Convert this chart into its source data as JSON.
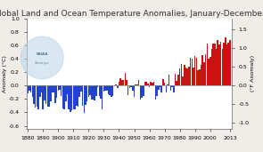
{
  "title": "Global Land and Ocean Temperature Anomalies, January-December",
  "ylabel_left": "Anomaly (°C)",
  "ylabel_right": "(°F Anomaly)",
  "years": [
    1880,
    1881,
    1882,
    1883,
    1884,
    1885,
    1886,
    1887,
    1888,
    1889,
    1890,
    1891,
    1892,
    1893,
    1894,
    1895,
    1896,
    1897,
    1898,
    1899,
    1900,
    1901,
    1902,
    1903,
    1904,
    1905,
    1906,
    1907,
    1908,
    1909,
    1910,
    1911,
    1912,
    1913,
    1914,
    1915,
    1916,
    1917,
    1918,
    1919,
    1920,
    1921,
    1922,
    1923,
    1924,
    1925,
    1926,
    1927,
    1928,
    1929,
    1930,
    1931,
    1932,
    1933,
    1934,
    1935,
    1936,
    1937,
    1938,
    1939,
    1940,
    1941,
    1942,
    1943,
    1944,
    1945,
    1946,
    1947,
    1948,
    1949,
    1950,
    1951,
    1952,
    1953,
    1954,
    1955,
    1956,
    1957,
    1958,
    1959,
    1960,
    1961,
    1962,
    1963,
    1964,
    1965,
    1966,
    1967,
    1968,
    1969,
    1970,
    1971,
    1972,
    1973,
    1974,
    1975,
    1976,
    1977,
    1978,
    1979,
    1980,
    1981,
    1982,
    1983,
    1984,
    1985,
    1986,
    1987,
    1988,
    1989,
    1990,
    1991,
    1992,
    1993,
    1994,
    1995,
    1996,
    1997,
    1998,
    1999,
    2000,
    2001,
    2002,
    2003,
    2004,
    2005,
    2006,
    2007,
    2008,
    2009,
    2010,
    2011,
    2012,
    2013
  ],
  "anomalies": [
    -0.12,
    -0.08,
    -0.11,
    -0.17,
    -0.28,
    -0.33,
    -0.31,
    -0.35,
    -0.17,
    -0.1,
    -0.35,
    -0.22,
    -0.27,
    -0.31,
    -0.32,
    -0.23,
    -0.11,
    -0.11,
    -0.26,
    -0.18,
    -0.08,
    -0.07,
    -0.15,
    -0.34,
    -0.36,
    -0.23,
    -0.13,
    -0.36,
    -0.39,
    -0.37,
    -0.35,
    -0.36,
    -0.3,
    -0.32,
    -0.17,
    -0.09,
    -0.3,
    -0.41,
    -0.29,
    -0.24,
    -0.17,
    -0.14,
    -0.21,
    -0.21,
    -0.22,
    -0.16,
    -0.02,
    -0.16,
    -0.2,
    -0.36,
    -0.09,
    -0.08,
    -0.08,
    -0.13,
    -0.14,
    -0.17,
    -0.15,
    -0.01,
    0.01,
    -0.04,
    0.05,
    0.11,
    0.08,
    0.08,
    0.19,
    0.08,
    -0.14,
    -0.04,
    -0.03,
    -0.08,
    -0.17,
    0.01,
    0.01,
    0.08,
    -0.21,
    -0.18,
    -0.15,
    0.05,
    0.06,
    0.03,
    -0.02,
    0.05,
    0.04,
    0.05,
    -0.21,
    -0.16,
    -0.07,
    -0.03,
    -0.1,
    0.09,
    0.04,
    -0.1,
    0.02,
    0.16,
    -0.08,
    -0.02,
    -0.1,
    0.18,
    0.07,
    0.16,
    0.26,
    0.32,
    0.14,
    0.31,
    0.27,
    0.25,
    0.28,
    0.41,
    0.4,
    0.27,
    0.44,
    0.41,
    0.23,
    0.24,
    0.31,
    0.45,
    0.35,
    0.46,
    0.63,
    0.4,
    0.42,
    0.54,
    0.63,
    0.62,
    0.54,
    0.68,
    0.61,
    0.65,
    0.54,
    0.64,
    0.72,
    0.61,
    0.64,
    0.68
  ],
  "xlim": [
    1879,
    2014
  ],
  "ylim": [
    -0.65,
    1.0
  ],
  "xticks": [
    1880,
    1890,
    1900,
    1910,
    1920,
    1930,
    1940,
    1950,
    1960,
    1970,
    1980,
    1990,
    2000,
    2013
  ],
  "yticks_c": [
    -0.6,
    -0.4,
    -0.2,
    0.0,
    0.2,
    0.4,
    0.6,
    0.8,
    1.0
  ],
  "yticks_f": [
    -1.0,
    -0.5,
    0.0,
    0.5,
    1.0,
    1.5
  ],
  "ylim_f": [
    -1.17,
    1.8
  ],
  "positive_color": "#cc1111",
  "negative_color": "#2244cc",
  "bg_color": "#f0ede8",
  "plot_bg": "#ffffff",
  "title_fontsize": 6.5,
  "axis_fontsize": 4.5,
  "tick_fontsize": 4.5
}
